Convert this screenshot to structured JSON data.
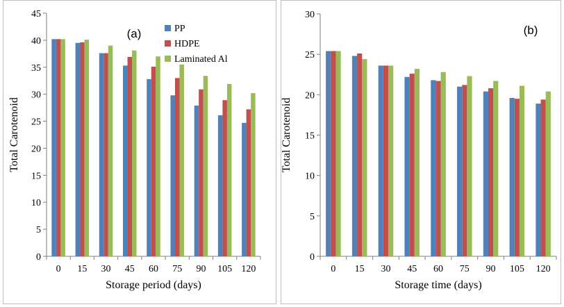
{
  "colors": {
    "PP": "#4f81bd",
    "HDPE": "#c0504d",
    "Laminated Al": "#9bbb59"
  },
  "chart_data": [
    {
      "type": "bar",
      "panel_label": "(a)",
      "title": "",
      "xlabel": "Storage period (days)",
      "ylabel": "Total Carotenoid",
      "categories": [
        "0",
        "15",
        "30",
        "45",
        "60",
        "75",
        "90",
        "105",
        "120"
      ],
      "ylim": [
        0,
        45
      ],
      "yticks": [
        0,
        5,
        10,
        15,
        20,
        25,
        30,
        35,
        40,
        45
      ],
      "grid": false,
      "legend": "top-right",
      "series": [
        {
          "name": "PP",
          "values": [
            40.2,
            39.5,
            37.6,
            35.3,
            32.8,
            29.8,
            27.9,
            26.1,
            24.7
          ]
        },
        {
          "name": "HDPE",
          "values": [
            40.2,
            39.6,
            37.6,
            36.9,
            35.1,
            33.0,
            30.9,
            28.9,
            27.2
          ]
        },
        {
          "name": "Laminated Al",
          "values": [
            40.2,
            40.1,
            39.0,
            38.1,
            37.0,
            35.5,
            33.4,
            31.9,
            30.2
          ]
        }
      ]
    },
    {
      "type": "bar",
      "panel_label": "(b)",
      "title": "",
      "xlabel": "Storage time (days)",
      "ylabel": "Total Carotenoid",
      "categories": [
        "0",
        "15",
        "30",
        "45",
        "60",
        "75",
        "90",
        "105",
        "120"
      ],
      "ylim": [
        0,
        30
      ],
      "yticks": [
        0,
        5,
        10,
        15,
        20,
        25,
        30
      ],
      "grid": false,
      "legend": "none",
      "series": [
        {
          "name": "PP",
          "values": [
            25.4,
            24.8,
            23.6,
            22.2,
            21.8,
            21.0,
            20.4,
            19.6,
            18.9
          ]
        },
        {
          "name": "HDPE",
          "values": [
            25.4,
            25.1,
            23.6,
            22.6,
            21.7,
            21.2,
            20.8,
            19.5,
            19.4
          ]
        },
        {
          "name": "Laminated Al",
          "values": [
            25.4,
            24.4,
            23.6,
            23.2,
            22.8,
            22.3,
            21.7,
            21.1,
            20.4
          ]
        }
      ]
    }
  ]
}
